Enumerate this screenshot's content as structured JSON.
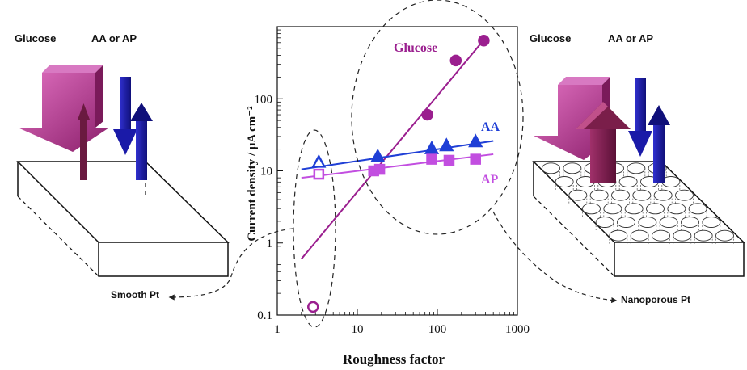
{
  "left_panel": {
    "glucose_label": "Glucose",
    "interferent_label": "AA or AP",
    "electrode_label": "Smooth Pt"
  },
  "right_panel": {
    "glucose_label": "Glucose",
    "interferent_label": "AA or AP",
    "electrode_label": "Nanoporous Pt"
  },
  "colors": {
    "glucose": "#9b1f8f",
    "aa": "#1f3fd6",
    "ap": "#c24ee0",
    "glucose_arrow": "#b0306f",
    "interferent_arrow": "#1a1aa8"
  },
  "chart_data": {
    "type": "scatter",
    "xlabel": "Roughness factor",
    "ylabel": "Current density /   μA cm⁻²",
    "x_scale": "log",
    "y_scale": "log",
    "xlim": [
      1,
      1000
    ],
    "ylim": [
      0.1,
      1000
    ],
    "x_ticks": [
      "1",
      "10",
      "100",
      "1000"
    ],
    "y_ticks": [
      "0.1",
      "1",
      "10",
      "100"
    ],
    "series": [
      {
        "name": "Glucose",
        "marker": "circle",
        "points": [
          [
            2.8,
            0.13
          ],
          [
            75,
            60
          ],
          [
            170,
            340
          ],
          [
            380,
            640
          ]
        ],
        "fit": [
          [
            2,
            0.6
          ],
          [
            400,
            700
          ]
        ]
      },
      {
        "name": "AA",
        "marker": "triangle",
        "points": [
          [
            3.3,
            13
          ],
          [
            18,
            15.5
          ],
          [
            85,
            20
          ],
          [
            130,
            22
          ],
          [
            300,
            25
          ]
        ],
        "fit": [
          [
            2,
            10.5
          ],
          [
            500,
            26
          ]
        ]
      },
      {
        "name": "AP",
        "marker": "square",
        "points": [
          [
            3.3,
            9
          ],
          [
            16,
            10
          ],
          [
            19,
            10.5
          ],
          [
            85,
            14.5
          ],
          [
            140,
            14
          ],
          [
            300,
            14.5
          ]
        ],
        "fit": [
          [
            2,
            8
          ],
          [
            500,
            17
          ]
        ]
      }
    ]
  }
}
